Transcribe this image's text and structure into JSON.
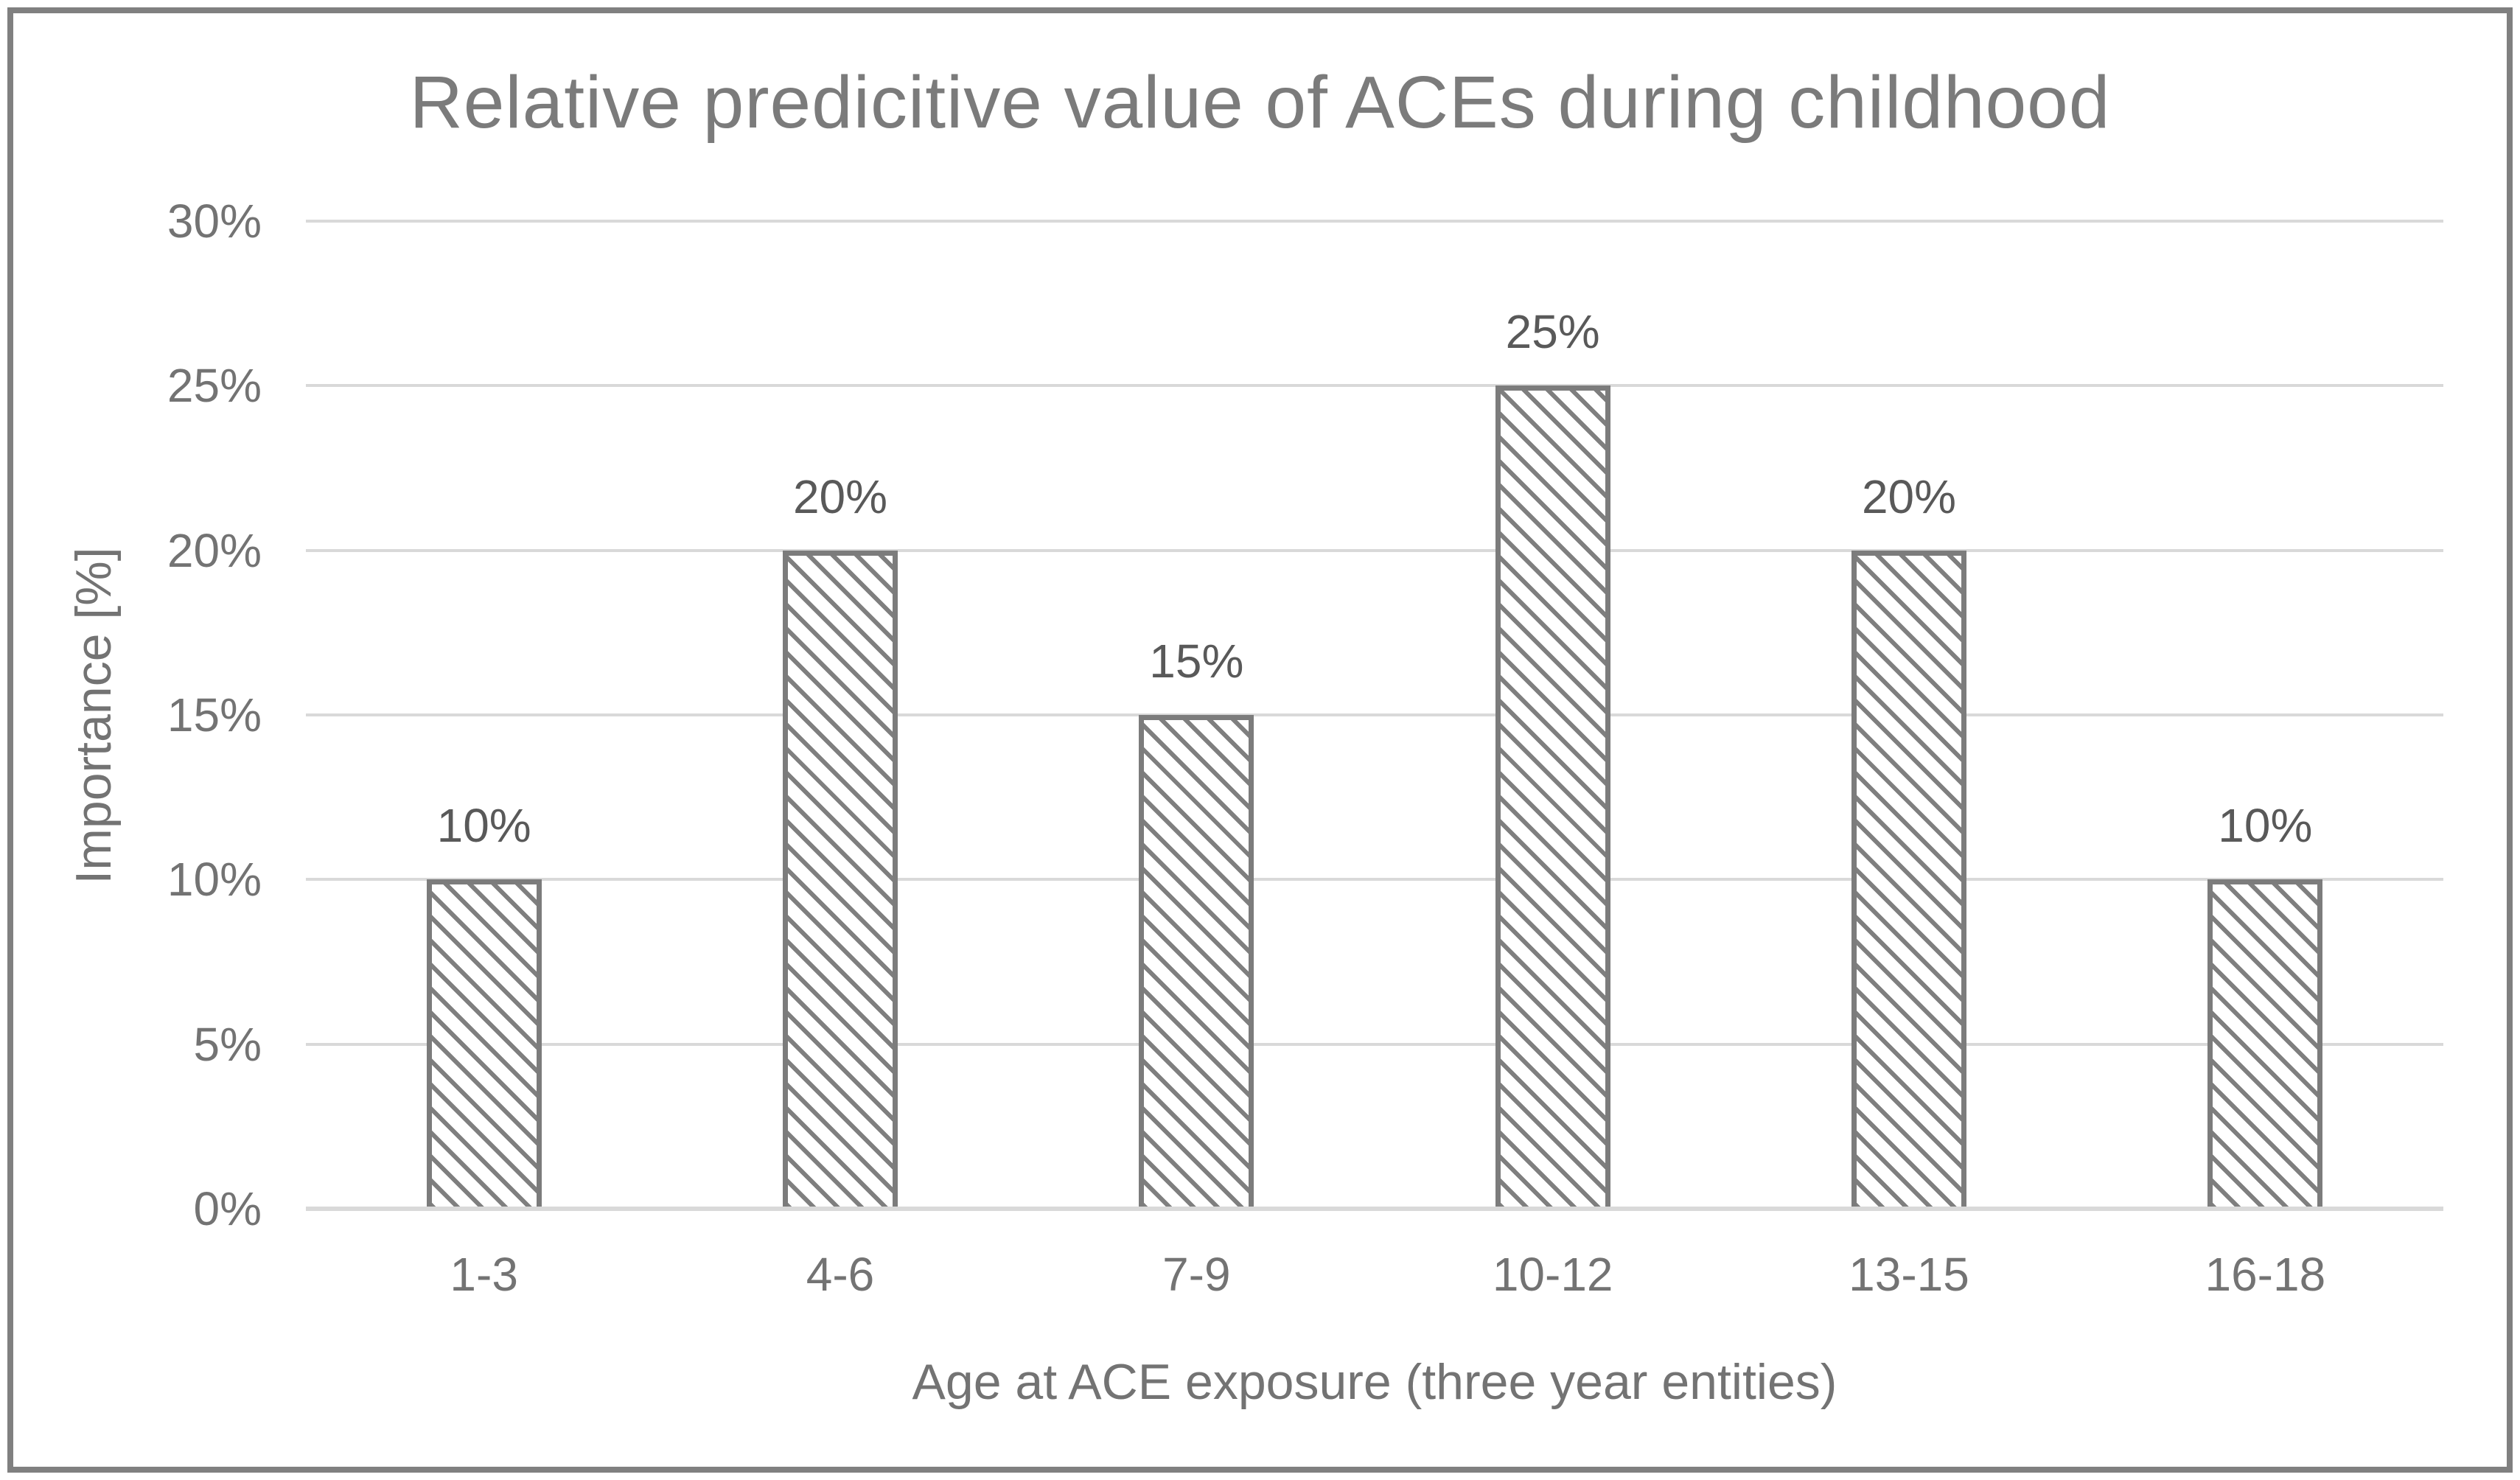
{
  "chart_data": {
    "type": "bar",
    "title": "Relative predicitive value of ACEs during childhood",
    "xlabel": "Age at ACE exposure (three year entities)",
    "ylabel": "Importance [%]",
    "categories": [
      "1-3",
      "4-6",
      "7-9",
      "10-12",
      "13-15",
      "16-18"
    ],
    "values": [
      10,
      20,
      15,
      25,
      20,
      10
    ],
    "data_labels": [
      "10%",
      "20%",
      "15%",
      "25%",
      "20%",
      "10%"
    ],
    "ylim": [
      0,
      30
    ],
    "yticks": [
      {
        "value": 0,
        "label": "0%"
      },
      {
        "value": 5,
        "label": "5%"
      },
      {
        "value": 10,
        "label": "10%"
      },
      {
        "value": 15,
        "label": "15%"
      },
      {
        "value": 20,
        "label": "20%"
      },
      {
        "value": 25,
        "label": "25%"
      },
      {
        "value": 30,
        "label": "30%"
      }
    ],
    "grid": true,
    "legend": false,
    "bar_fill": "diagonal-hatch",
    "colors": {
      "title_text": "#7b7b7b",
      "axis_text": "#737373",
      "data_label_text": "#595959",
      "gridline": "#d9d9d9",
      "bar_border": "#7c7c7c",
      "bar_hatch": "#7f7f7f",
      "bar_background": "#ffffff",
      "frame_border": "#808080",
      "background": "#ffffff"
    }
  }
}
